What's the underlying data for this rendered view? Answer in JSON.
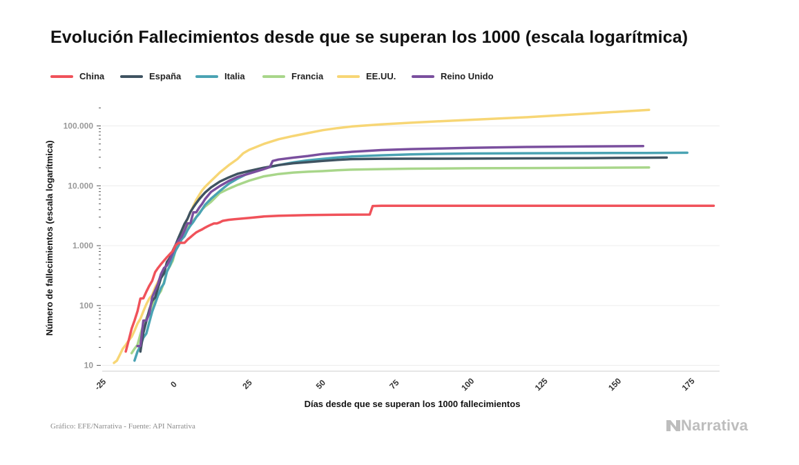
{
  "title": "Evolución Fallecimientos desde que se superan los 1000 (escala logarítmica)",
  "footer": {
    "credit": "Gráfico: EFE/Narrativa - Fuente: API Narrativa",
    "brand": "Narrativa"
  },
  "colors": {
    "China": "#f0525a",
    "España": "#3f5361",
    "Italia": "#4aa3b3",
    "Francia": "#a8d68a",
    "EE.UU.": "#f7d675",
    "Reino Unido": "#7a4f9e",
    "grid": "#ececec",
    "axis": "#cccccc",
    "tick_text": "#999999"
  },
  "chart_data": {
    "type": "line",
    "title": "Evolución Fallecimientos desde que se superan los 1000 (escala logarítmica)",
    "xlabel": "Días desde que se superan los 1000 fallecimientos",
    "ylabel": "Número de fallecimientos (escala logarítmica)",
    "y_scale": "log",
    "xlim": [
      -25,
      185
    ],
    "ylim": [
      8,
      250000
    ],
    "x_ticks": [
      -25,
      0,
      25,
      50,
      75,
      100,
      125,
      150,
      175
    ],
    "x_tick_labels": [
      "-25",
      "0",
      "25",
      "50",
      "75",
      "100",
      "125",
      "150",
      "175"
    ],
    "y_ticks": [
      10,
      100,
      1000,
      10000,
      100000
    ],
    "y_tick_labels": [
      "10",
      "100",
      "1.000",
      "10.000",
      "100.000"
    ],
    "grid": true,
    "legend_position": "top-left",
    "series": [
      {
        "name": "China",
        "points": [
          [
            -17,
            17
          ],
          [
            -16,
            26
          ],
          [
            -15,
            41
          ],
          [
            -14,
            56
          ],
          [
            -13,
            80
          ],
          [
            -12,
            131
          ],
          [
            -11,
            132
          ],
          [
            -10,
            170
          ],
          [
            -9,
            213
          ],
          [
            -8,
            259
          ],
          [
            -7,
            361
          ],
          [
            -6,
            425
          ],
          [
            -5,
            490
          ],
          [
            -4,
            560
          ],
          [
            -3,
            640
          ],
          [
            -2,
            720
          ],
          [
            -1,
            810
          ],
          [
            0,
            1017
          ],
          [
            1,
            1113
          ],
          [
            2,
            1114
          ],
          [
            3,
            1116
          ],
          [
            4,
            1260
          ],
          [
            5,
            1380
          ],
          [
            6,
            1523
          ],
          [
            7,
            1665
          ],
          [
            8,
            1770
          ],
          [
            9,
            1868
          ],
          [
            10,
            2004
          ],
          [
            11,
            2120
          ],
          [
            12,
            2239
          ],
          [
            13,
            2345
          ],
          [
            14,
            2348
          ],
          [
            15,
            2450
          ],
          [
            16,
            2600
          ],
          [
            18,
            2700
          ],
          [
            20,
            2760
          ],
          [
            25,
            2900
          ],
          [
            30,
            3070
          ],
          [
            35,
            3150
          ],
          [
            40,
            3200
          ],
          [
            45,
            3240
          ],
          [
            50,
            3260
          ],
          [
            55,
            3290
          ],
          [
            60,
            3300
          ],
          [
            66,
            3310
          ],
          [
            67,
            4600
          ],
          [
            70,
            4632
          ],
          [
            80,
            4634
          ],
          [
            100,
            4634
          ],
          [
            130,
            4634
          ],
          [
            160,
            4636
          ],
          [
            183,
            4642
          ]
        ]
      },
      {
        "name": "España",
        "points": [
          [
            -12,
            17
          ],
          [
            -11,
            35
          ],
          [
            -10,
            55
          ],
          [
            -9,
            84
          ],
          [
            -8,
            120
          ],
          [
            -7,
            136
          ],
          [
            -6,
            198
          ],
          [
            -5,
            288
          ],
          [
            -4,
            342
          ],
          [
            -3,
            533
          ],
          [
            -2,
            623
          ],
          [
            -1,
            830
          ],
          [
            0,
            1043
          ],
          [
            1,
            1375
          ],
          [
            2,
            1772
          ],
          [
            3,
            2311
          ],
          [
            4,
            2808
          ],
          [
            5,
            3647
          ],
          [
            6,
            4365
          ],
          [
            7,
            5138
          ],
          [
            8,
            5982
          ],
          [
            9,
            6803
          ],
          [
            10,
            7716
          ],
          [
            12,
            9387
          ],
          [
            15,
            11744
          ],
          [
            18,
            13798
          ],
          [
            21,
            15843
          ],
          [
            25,
            17756
          ],
          [
            30,
            20043
          ],
          [
            35,
            22157
          ],
          [
            40,
            23822
          ],
          [
            45,
            24824
          ],
          [
            50,
            26070
          ],
          [
            55,
            27104
          ],
          [
            60,
            27888
          ],
          [
            63,
            28000
          ],
          [
            70,
            28325
          ],
          [
            80,
            28388
          ],
          [
            100,
            28432
          ],
          [
            120,
            28752
          ],
          [
            140,
            29011
          ],
          [
            160,
            29418
          ],
          [
            167,
            29600
          ]
        ]
      },
      {
        "name": "Italia",
        "points": [
          [
            -14,
            12
          ],
          [
            -13,
            17
          ],
          [
            -12,
            21
          ],
          [
            -11,
            29
          ],
          [
            -10,
            34
          ],
          [
            -9,
            52
          ],
          [
            -8,
            79
          ],
          [
            -7,
            107
          ],
          [
            -6,
            148
          ],
          [
            -5,
            197
          ],
          [
            -4,
            233
          ],
          [
            -3,
            366
          ],
          [
            -2,
            463
          ],
          [
            -1,
            631
          ],
          [
            0,
            827
          ],
          [
            1,
            1016
          ],
          [
            2,
            1266
          ],
          [
            3,
            1441
          ],
          [
            4,
            1809
          ],
          [
            5,
            2158
          ],
          [
            6,
            2503
          ],
          [
            7,
            2978
          ],
          [
            8,
            3405
          ],
          [
            9,
            4032
          ],
          [
            10,
            4825
          ],
          [
            12,
            6077
          ],
          [
            15,
            8165
          ],
          [
            18,
            10779
          ],
          [
            21,
            13155
          ],
          [
            25,
            16523
          ],
          [
            30,
            19468
          ],
          [
            35,
            22170
          ],
          [
            40,
            24648
          ],
          [
            45,
            26644
          ],
          [
            50,
            28236
          ],
          [
            55,
            29684
          ],
          [
            60,
            30911
          ],
          [
            70,
            32330
          ],
          [
            80,
            33415
          ],
          [
            90,
            34167
          ],
          [
            100,
            34610
          ],
          [
            120,
            34984
          ],
          [
            140,
            35154
          ],
          [
            160,
            35400
          ],
          [
            174,
            35600
          ]
        ]
      },
      {
        "name": "Francia",
        "points": [
          [
            -15,
            16
          ],
          [
            -14,
            19
          ],
          [
            -13,
            22
          ],
          [
            -12,
            33
          ],
          [
            -11,
            48
          ],
          [
            -10,
            61
          ],
          [
            -9,
            79
          ],
          [
            -8,
            91
          ],
          [
            -7,
            127
          ],
          [
            -6,
            148
          ],
          [
            -5,
            175
          ],
          [
            -4,
            244
          ],
          [
            -3,
            372
          ],
          [
            -2,
            450
          ],
          [
            -1,
            562
          ],
          [
            0,
            860
          ],
          [
            1,
            1100
          ],
          [
            2,
            1331
          ],
          [
            3,
            1696
          ],
          [
            4,
            1995
          ],
          [
            5,
            2314
          ],
          [
            6,
            2606
          ],
          [
            7,
            3024
          ],
          [
            8,
            3523
          ],
          [
            9,
            4032
          ],
          [
            10,
            4503
          ],
          [
            12,
            5387
          ],
          [
            15,
            7560
          ],
          [
            18,
            8911
          ],
          [
            21,
            10328
          ],
          [
            25,
            12210
          ],
          [
            30,
            14393
          ],
          [
            35,
            15729
          ],
          [
            40,
            16642
          ],
          [
            45,
            17167
          ],
          [
            50,
            17589
          ],
          [
            55,
            18195
          ],
          [
            60,
            18627
          ],
          [
            70,
            19000
          ],
          [
            80,
            19300
          ],
          [
            100,
            19600
          ],
          [
            120,
            19800
          ],
          [
            140,
            20000
          ],
          [
            161,
            20200
          ]
        ]
      },
      {
        "name": "EE.UU.",
        "points": [
          [
            -21,
            11
          ],
          [
            -20,
            12
          ],
          [
            -19,
            15
          ],
          [
            -18,
            19
          ],
          [
            -17,
            22
          ],
          [
            -16,
            26
          ],
          [
            -15,
            30
          ],
          [
            -14,
            38
          ],
          [
            -13,
            50
          ],
          [
            -12,
            60
          ],
          [
            -11,
            80
          ],
          [
            -10,
            105
          ],
          [
            -9,
            130
          ],
          [
            -8,
            150
          ],
          [
            -7,
            200
          ],
          [
            -6,
            250
          ],
          [
            -5,
            310
          ],
          [
            -4,
            400
          ],
          [
            -3,
            500
          ],
          [
            -2,
            620
          ],
          [
            -1,
            780
          ],
          [
            0,
            1000
          ],
          [
            1,
            1300
          ],
          [
            2,
            1700
          ],
          [
            3,
            2200
          ],
          [
            4,
            2800
          ],
          [
            5,
            3600
          ],
          [
            6,
            4600
          ],
          [
            7,
            5800
          ],
          [
            8,
            7000
          ],
          [
            9,
            8400
          ],
          [
            10,
            9600
          ],
          [
            12,
            12000
          ],
          [
            15,
            16700
          ],
          [
            18,
            22000
          ],
          [
            21,
            28000
          ],
          [
            23,
            35000
          ],
          [
            25,
            40000
          ],
          [
            30,
            50000
          ],
          [
            35,
            60000
          ],
          [
            40,
            68000
          ],
          [
            45,
            76000
          ],
          [
            50,
            85000
          ],
          [
            55,
            92000
          ],
          [
            60,
            98000
          ],
          [
            70,
            106000
          ],
          [
            80,
            113000
          ],
          [
            90,
            120000
          ],
          [
            100,
            126000
          ],
          [
            110,
            133000
          ],
          [
            120,
            140000
          ],
          [
            130,
            150000
          ],
          [
            140,
            160000
          ],
          [
            150,
            172000
          ],
          [
            161,
            185000
          ]
        ]
      },
      {
        "name": "Reino Unido",
        "points": [
          [
            -13,
            21
          ],
          [
            -12,
            21
          ],
          [
            -11,
            56
          ],
          [
            -10,
            56
          ],
          [
            -9,
            72
          ],
          [
            -8,
            138
          ],
          [
            -7,
            178
          ],
          [
            -6,
            233
          ],
          [
            -5,
            335
          ],
          [
            -4,
            422
          ],
          [
            -3,
            465
          ],
          [
            -2,
            578
          ],
          [
            -1,
            759
          ],
          [
            0,
            1019
          ],
          [
            1,
            1228
          ],
          [
            2,
            1408
          ],
          [
            3,
            1789
          ],
          [
            4,
            2352
          ],
          [
            5,
            2352
          ],
          [
            6,
            3611
          ],
          [
            7,
            3611
          ],
          [
            8,
            4320
          ],
          [
            9,
            5000
          ],
          [
            10,
            6000
          ],
          [
            12,
            7900
          ],
          [
            15,
            9900
          ],
          [
            18,
            12000
          ],
          [
            21,
            14000
          ],
          [
            25,
            16000
          ],
          [
            30,
            19000
          ],
          [
            32,
            20500
          ],
          [
            33,
            26000
          ],
          [
            35,
            27500
          ],
          [
            40,
            29500
          ],
          [
            45,
            31500
          ],
          [
            50,
            34000
          ],
          [
            55,
            35500
          ],
          [
            60,
            37000
          ],
          [
            70,
            39500
          ],
          [
            80,
            41000
          ],
          [
            90,
            42000
          ],
          [
            100,
            43000
          ],
          [
            120,
            44500
          ],
          [
            140,
            45500
          ],
          [
            159,
            46000
          ]
        ]
      }
    ]
  }
}
